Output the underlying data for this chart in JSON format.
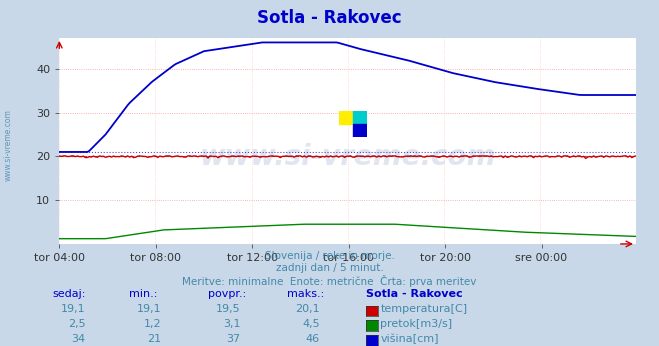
{
  "title": "Sotla - Rakovec",
  "title_color": "#0000cc",
  "background_color": "#c8d8e8",
  "plot_bg_color": "#ffffff",
  "grid_color_h": "#ff9999",
  "grid_color_v": "#ffcccc",
  "temp_color": "#cc0000",
  "flow_color": "#008800",
  "height_color": "#0000cc",
  "watermark_color": "#1a3a8a",
  "watermark_alpha": 0.15,
  "side_label": "www.si-vreme.com",
  "side_label_color": "#4488aa",
  "xlabel_ticks": [
    "tor 04:00",
    "tor 08:00",
    "tor 12:00",
    "tor 16:00",
    "tor 20:00",
    "sre 00:00"
  ],
  "ylim": [
    0,
    47
  ],
  "yticks": [
    10,
    20,
    30,
    40
  ],
  "n_points": 288,
  "subtitle_lines": [
    "Slovenija / reke in morje.",
    "zadnji dan / 5 minut.",
    "Meritve: minimalne  Enote: metrične  Črta: prva meritev"
  ],
  "legend_station": "Sotla - Rakovec",
  "legend_rows": [
    {
      "sedaj": "19,1",
      "min": "19,1",
      "povpr": "19,5",
      "maks": "20,1",
      "label": "temperatura[C]",
      "color": "#cc0000"
    },
    {
      "sedaj": "2,5",
      "min": "1,2",
      "povpr": "3,1",
      "maks": "4,5",
      "label": "pretok[m3/s]",
      "color": "#008800"
    },
    {
      "sedaj": "34",
      "min": "21",
      "povpr": "37",
      "maks": "46",
      "label": "višina[cm]",
      "color": "#0000cc"
    }
  ],
  "table_headers": [
    "sedaj:",
    "min.:",
    "povpr.:",
    "maks.:",
    "Sotla - Rakovec"
  ],
  "logo_colors": [
    "#ffee00",
    "#00cccc",
    "#0000cc"
  ],
  "arrow_color": "#cc0000"
}
